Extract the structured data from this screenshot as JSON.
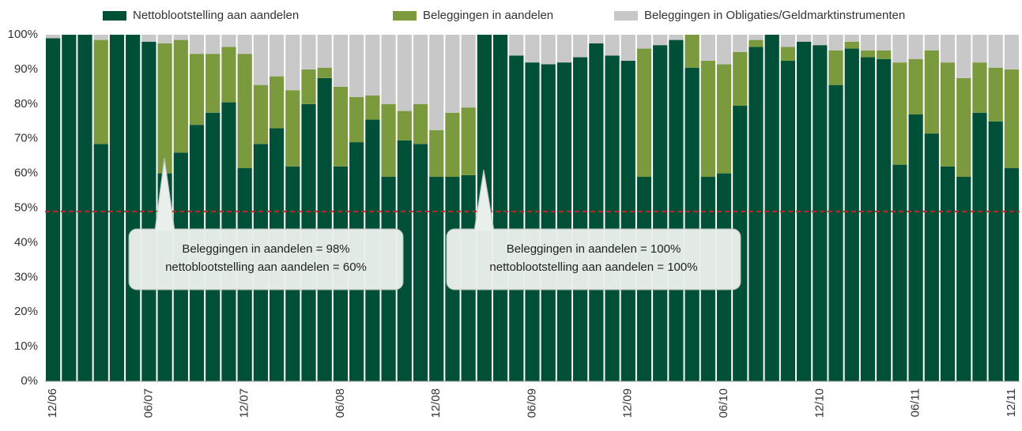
{
  "chart_data": {
    "type": "stacked_bar",
    "series": [
      {
        "name": "Nettoblootstelling aan aandelen",
        "color": "#005038",
        "values": [
          99,
          100,
          100,
          68.5,
          100,
          100,
          98,
          60,
          66,
          74,
          77.5,
          80.5,
          61.5,
          68.5,
          73,
          62,
          80,
          87.5,
          62,
          69,
          75.5,
          59,
          69.5,
          68.5,
          59,
          59,
          59.5,
          100,
          100,
          94,
          92,
          91.5,
          92,
          93.5,
          97.5,
          94,
          92.5,
          59,
          97,
          98.5,
          90.5,
          59,
          60,
          79.5,
          96.5,
          100,
          92.5,
          98,
          97,
          85.5,
          96,
          93.5,
          93,
          62.5,
          77,
          71.5,
          62,
          59,
          77.5,
          75,
          61.5
        ]
      },
      {
        "name": "Beleggingen in aandelen",
        "color": "#7a9a3d",
        "values": [
          0,
          0,
          0,
          30,
          0,
          0,
          0,
          37.5,
          32.5,
          20.5,
          17,
          16,
          33,
          17,
          15,
          22,
          10,
          3,
          23,
          13,
          7,
          21,
          8.5,
          11.5,
          13.5,
          18.5,
          19.5,
          0,
          0,
          0,
          0,
          0,
          0,
          0,
          0,
          0,
          0,
          37,
          0,
          0,
          9.5,
          33.5,
          31.5,
          15.5,
          2,
          0,
          4,
          0,
          0,
          10,
          2,
          2,
          2.5,
          29.5,
          16,
          24,
          30,
          28.5,
          14.5,
          15.5,
          28.5
        ]
      },
      {
        "name": "Beleggingen in Obligaties/Geldmarktinstrumenten",
        "color": "#c8c8c8",
        "values": [
          1,
          0,
          0,
          1.5,
          0,
          0,
          2,
          2.5,
          1.5,
          5.5,
          5.5,
          3.5,
          5.5,
          14.5,
          12,
          16,
          10,
          9.5,
          15,
          18,
          17.5,
          20,
          22,
          20,
          27.5,
          22.5,
          21,
          0,
          0,
          6,
          8,
          8.5,
          8,
          6.5,
          2.5,
          6,
          7.5,
          4,
          3,
          1.5,
          0,
          7.5,
          8.5,
          5,
          1.5,
          0,
          3.5,
          2,
          3,
          4.5,
          2,
          4.5,
          4.5,
          8,
          7,
          4.5,
          8,
          12.5,
          8,
          9.5,
          10
        ]
      }
    ],
    "categories": [
      "12/06",
      null,
      null,
      null,
      null,
      null,
      "06/07",
      null,
      null,
      null,
      null,
      null,
      "12/07",
      null,
      null,
      null,
      null,
      null,
      "06/08",
      null,
      null,
      null,
      null,
      null,
      "12/08",
      null,
      null,
      null,
      null,
      null,
      "06/09",
      null,
      null,
      null,
      null,
      null,
      "12/09",
      null,
      null,
      null,
      null,
      null,
      "06/10",
      null,
      null,
      null,
      null,
      null,
      "12/10",
      null,
      null,
      null,
      null,
      null,
      "06/11",
      null,
      null,
      null,
      null,
      null,
      "12/11"
    ],
    "ylim": [
      0,
      100
    ],
    "yticks": [
      {
        "value": 0,
        "label": "0%"
      },
      {
        "value": 10,
        "label": "10%"
      },
      {
        "value": 20,
        "label": "20%"
      },
      {
        "value": 30,
        "label": "30%"
      },
      {
        "value": 40,
        "label": "40%"
      },
      {
        "value": 50,
        "label": "50%"
      },
      {
        "value": 60,
        "label": "60%"
      },
      {
        "value": 70,
        "label": "70%"
      },
      {
        "value": 80,
        "label": "80%"
      },
      {
        "value": 90,
        "label": "90%"
      },
      {
        "value": 100,
        "label": "100%"
      }
    ],
    "reference_line": {
      "value": 49,
      "color": "#c0272d"
    },
    "annotations": [
      {
        "lines": [
          "Beleggingen in aandelen = 98%",
          "nettoblootstelling aan aandelen = 60%"
        ]
      },
      {
        "lines": [
          "Beleggingen in aandelen = 100%",
          "nettoblootstelling aan aandelen = 100%"
        ]
      }
    ]
  }
}
